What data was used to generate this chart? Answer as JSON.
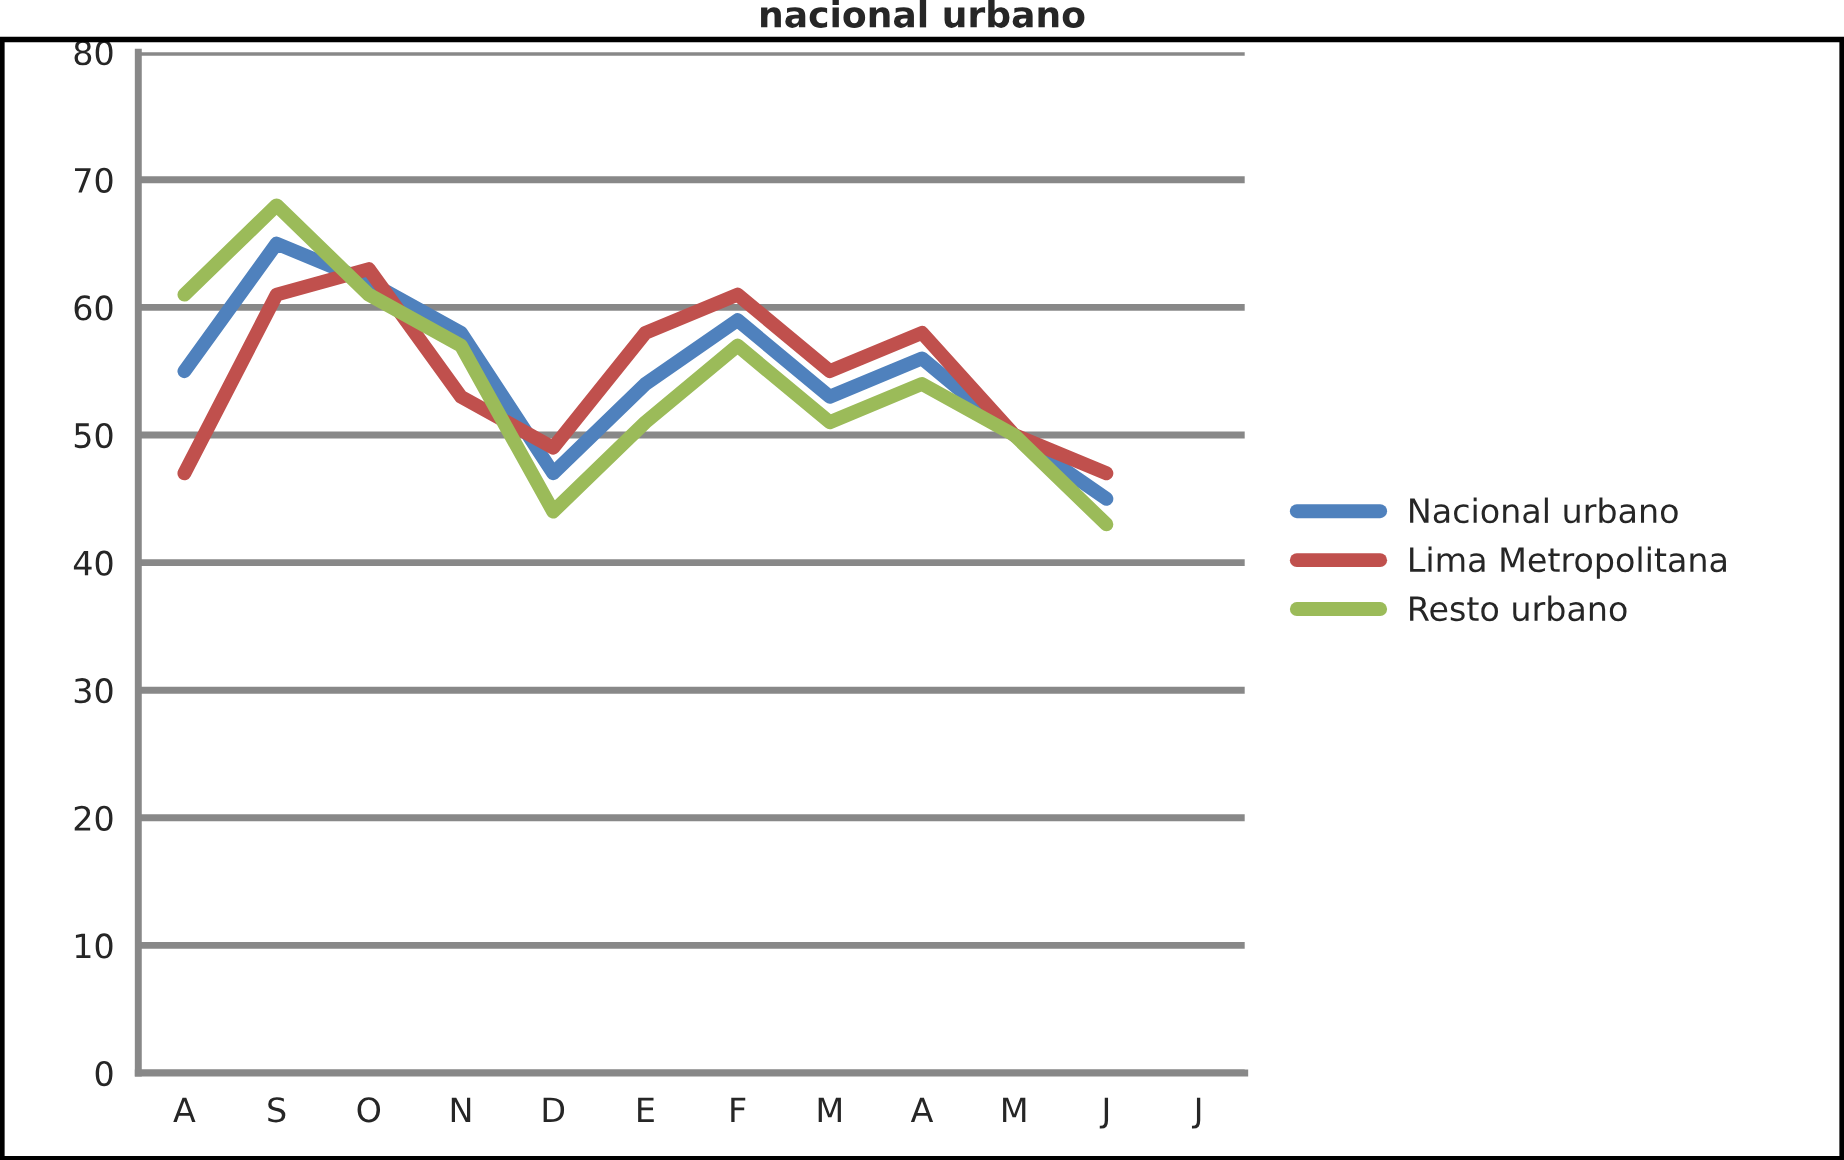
{
  "chart_data": {
    "type": "line",
    "title": "nacional urbano",
    "categories": [
      "A",
      "S",
      "O",
      "N",
      "D",
      "E",
      "F",
      "M",
      "A",
      "M",
      "J",
      "J"
    ],
    "series": [
      {
        "name": "Nacional urbano",
        "color": "#4f81bd",
        "values": [
          55,
          65,
          62,
          58,
          47,
          54,
          59,
          53,
          56,
          50,
          45,
          null
        ]
      },
      {
        "name": "Lima Metropolitana",
        "color": "#c0504d",
        "values": [
          47,
          61,
          63,
          53,
          49,
          58,
          61,
          55,
          58,
          50,
          47,
          null
        ]
      },
      {
        "name": "Resto urbano",
        "color": "#9bbb59",
        "values": [
          61,
          68,
          61,
          57,
          44,
          51,
          57,
          51,
          54,
          50,
          43,
          null
        ]
      }
    ],
    "ylim": [
      0,
      80
    ],
    "yticks": [
      0,
      10,
      20,
      30,
      40,
      50,
      60,
      70,
      80
    ],
    "grid": "y",
    "legend": "right",
    "marker": "none",
    "line_style": "solid"
  }
}
